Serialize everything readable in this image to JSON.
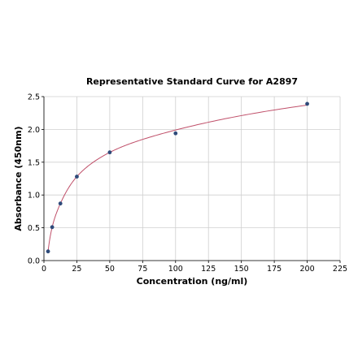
{
  "chart_data": {
    "type": "scatter",
    "title": "Representative Standard Curve for A2897",
    "xlabel": "Concentration (ng/ml)",
    "ylabel": "Absorbance (450nm)",
    "xlim": [
      0,
      225
    ],
    "ylim": [
      0,
      2.5
    ],
    "xticks": [
      0,
      25,
      50,
      75,
      100,
      125,
      150,
      175,
      200,
      225
    ],
    "yticks": [
      0.0,
      0.5,
      1.0,
      1.5,
      2.0,
      2.5
    ],
    "ytick_labels": [
      "0.0",
      "0.5",
      "1.0",
      "1.5",
      "2.0",
      "2.5"
    ],
    "grid": true,
    "series": [
      {
        "type": "scatter",
        "x": [
          3.125,
          6.25,
          12.5,
          25,
          50,
          100,
          200
        ],
        "y": [
          0.14,
          0.51,
          0.87,
          1.28,
          1.65,
          1.94,
          2.39
        ]
      }
    ],
    "fit_curve": {
      "x": [
        3.125,
        6.25,
        12.5,
        25,
        50,
        100,
        200
      ],
      "y": [
        0.14,
        0.51,
        0.87,
        1.28,
        1.65,
        1.99,
        2.37
      ]
    },
    "colors": {
      "point": "#2e4a7a",
      "curve": "#c0506a"
    }
  }
}
